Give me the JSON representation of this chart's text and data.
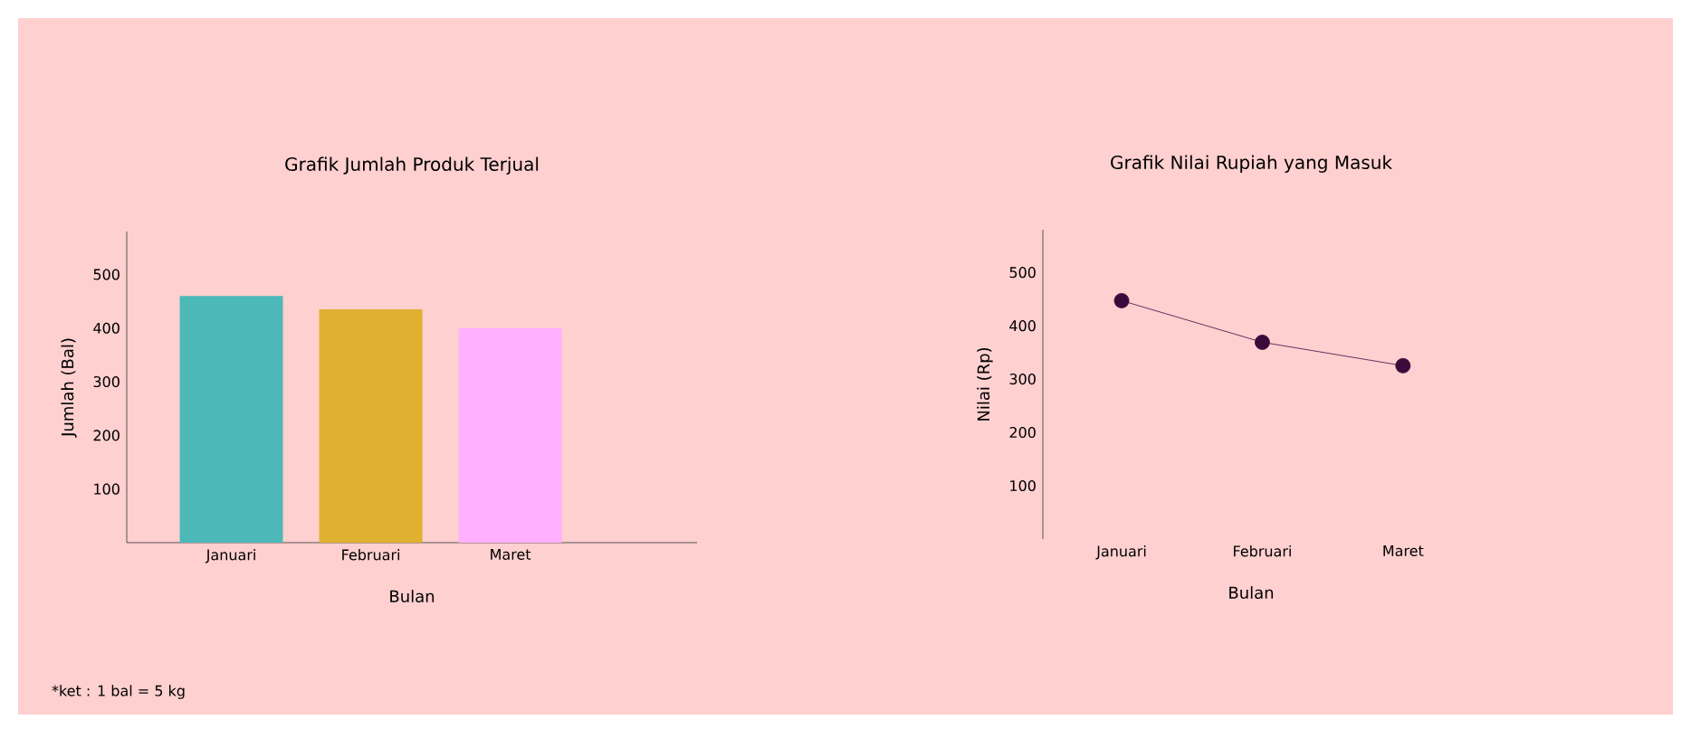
{
  "chart_data": [
    {
      "type": "bar",
      "title": "Grafik Jumlah Produk Terjual",
      "xlabel": "Bulan",
      "ylabel": "Jumlah (Bal)",
      "categories": [
        "Januari",
        "Februari",
        "Maret"
      ],
      "values": [
        460,
        435,
        400
      ],
      "colors": [
        "#4db8b8",
        "#e0b030",
        "#ffb0ff"
      ],
      "ylim": [
        0,
        580
      ],
      "yticks": [
        100,
        200,
        300,
        400,
        500
      ],
      "annotations": [
        "*ket : 1 bal = 5 kg"
      ]
    },
    {
      "type": "line",
      "title": "Grafik Nilai Rupiah yang Masuk",
      "xlabel": "Bulan",
      "ylabel": "Nilai (Rp)",
      "categories": [
        "Januari",
        "Februari",
        "Maret"
      ],
      "series": [
        {
          "color": "#3a0a3a",
          "values": [
            447,
            369,
            325
          ]
        }
      ],
      "marker": "circle",
      "line_style": "solid",
      "ylim": [
        0,
        580
      ],
      "yticks": [
        100,
        200,
        300,
        400,
        500
      ]
    }
  ]
}
